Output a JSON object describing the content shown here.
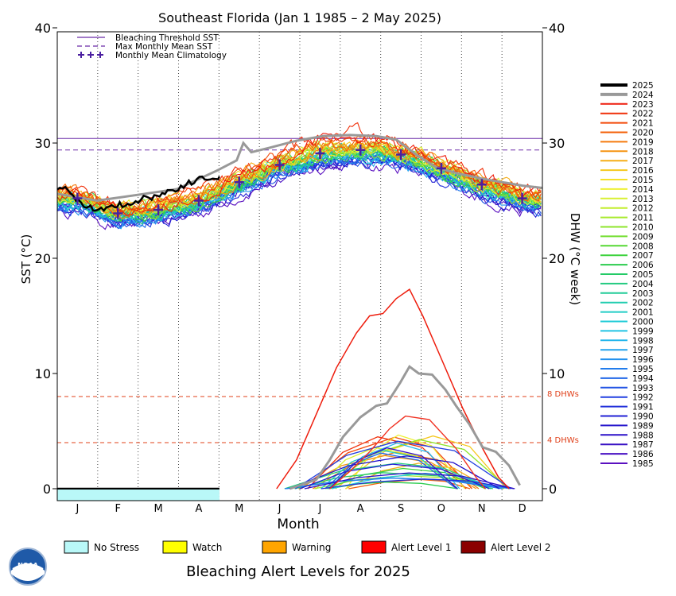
{
  "chart_data": {
    "type": "line",
    "title": "Southeast Florida      (Jan 1 1985 – 2 May 2025)",
    "xlabel": "Month",
    "ylabel_left": "SST (°C)",
    "ylabel_right": "DHW (°C week)",
    "months": [
      "J",
      "F",
      "M",
      "A",
      "M",
      "J",
      "J",
      "A",
      "S",
      "O",
      "N",
      "D"
    ],
    "ylim": [
      -1,
      40
    ],
    "yticks": [
      0,
      10,
      20,
      30,
      40
    ],
    "grid": "dotted vertical lines at month boundaries",
    "bleaching_threshold_sst": 30.4,
    "max_monthly_mean_sst": 29.4,
    "dhw_reference_lines": [
      {
        "value": 8,
        "label": "8 DHWs"
      },
      {
        "value": 4,
        "label": "4 DHWs"
      }
    ],
    "monthly_mean_climatology": [
      {
        "month": "J",
        "value": 25.2
      },
      {
        "month": "F",
        "value": 23.9
      },
      {
        "month": "M",
        "value": 24.2
      },
      {
        "month": "A",
        "value": 25.0
      },
      {
        "month": "M",
        "value": 26.6
      },
      {
        "month": "J",
        "value": 28.1
      },
      {
        "month": "J",
        "value": 29.1
      },
      {
        "month": "A",
        "value": 29.4
      },
      {
        "month": "S",
        "value": 29.0
      },
      {
        "month": "O",
        "value": 27.8
      },
      {
        "month": "N",
        "value": 26.4
      },
      {
        "month": "D",
        "value": 25.2
      }
    ],
    "legend_top": [
      {
        "label": "Bleaching Threshold SST",
        "style": "solid",
        "color": "#6a2aa8"
      },
      {
        "label": "Max Monthly Mean SST",
        "style": "dashed",
        "color": "#6a2aa8"
      },
      {
        "label": "Monthly Mean Climatology",
        "style": "plus",
        "color": "#4b1fa0"
      }
    ],
    "years": [
      "2025",
      "2024",
      "2023",
      "2022",
      "2021",
      "2020",
      "2019",
      "2018",
      "2017",
      "2016",
      "2015",
      "2014",
      "2013",
      "2012",
      "2011",
      "2010",
      "2009",
      "2008",
      "2007",
      "2006",
      "2005",
      "2004",
      "2003",
      "2002",
      "2001",
      "2000",
      "1999",
      "1998",
      "1997",
      "1996",
      "1995",
      "1994",
      "1993",
      "1992",
      "1991",
      "1990",
      "1989",
      "1988",
      "1987",
      "1986",
      "1985"
    ],
    "year_colors": [
      "#000000",
      "#999999",
      "#ee1c0c",
      "#f0300a",
      "#f24808",
      "#f46008",
      "#f57a0c",
      "#f59412",
      "#f5ae18",
      "#f5c820",
      "#f5e02a",
      "#eef032",
      "#d8f032",
      "#c2ee2e",
      "#a8ea2c",
      "#8ee42c",
      "#72de2e",
      "#56d834",
      "#3cd23c",
      "#2ccc4e",
      "#24ca66",
      "#22ca80",
      "#22cc98",
      "#22cdb0",
      "#22cec6",
      "#22ccd8",
      "#22c4e4",
      "#22b6ec",
      "#22a4ee",
      "#2290ee",
      "#227cec",
      "#2268e8",
      "#2254e4",
      "#2240e0",
      "#2230da",
      "#2220d4",
      "#2414cc",
      "#2c10c8",
      "#3810c4",
      "#4810c2",
      "#5a10c0"
    ],
    "series_2025_sst": [
      [
        0,
        26.2
      ],
      [
        8,
        25.9
      ],
      [
        12,
        25.2
      ],
      [
        18,
        24.8
      ],
      [
        25,
        24.4
      ],
      [
        35,
        24.3
      ],
      [
        45,
        24.6
      ],
      [
        55,
        24.8
      ],
      [
        65,
        25.2
      ],
      [
        75,
        25.4
      ],
      [
        85,
        25.8
      ],
      [
        95,
        26.3
      ],
      [
        105,
        26.8
      ],
      [
        115,
        27.0
      ],
      [
        122,
        27.1
      ]
    ],
    "series_2024_sst": [
      [
        0,
        25.6
      ],
      [
        30,
        25.0
      ],
      [
        60,
        25.5
      ],
      [
        90,
        26.0
      ],
      [
        120,
        27.6
      ],
      [
        135,
        28.5
      ],
      [
        140,
        30.0
      ],
      [
        146,
        29.2
      ],
      [
        160,
        29.6
      ],
      [
        180,
        30.2
      ],
      [
        200,
        30.6
      ],
      [
        220,
        30.7
      ],
      [
        240,
        30.6
      ],
      [
        255,
        30.3
      ],
      [
        270,
        29.0
      ],
      [
        285,
        27.9
      ],
      [
        300,
        27.4
      ],
      [
        320,
        26.9
      ],
      [
        335,
        26.6
      ],
      [
        350,
        26.3
      ],
      [
        365,
        26.1
      ]
    ],
    "series_2024_dhw": [
      [
        175,
        0
      ],
      [
        195,
        0.8
      ],
      [
        205,
        2.5
      ],
      [
        215,
        4.5
      ],
      [
        228,
        6.2
      ],
      [
        240,
        7.2
      ],
      [
        248,
        7.4
      ],
      [
        258,
        9.2
      ],
      [
        265,
        10.6
      ],
      [
        272,
        10.0
      ],
      [
        282,
        9.9
      ],
      [
        292,
        8.6
      ],
      [
        300,
        7.2
      ],
      [
        310,
        5.6
      ],
      [
        320,
        3.6
      ],
      [
        330,
        3.2
      ],
      [
        340,
        2.0
      ],
      [
        348,
        0.3
      ]
    ],
    "series_2023_dhw": [
      [
        165,
        0
      ],
      [
        180,
        2.5
      ],
      [
        195,
        6.5
      ],
      [
        210,
        10.5
      ],
      [
        225,
        13.5
      ],
      [
        235,
        15.0
      ],
      [
        245,
        15.2
      ],
      [
        255,
        16.5
      ],
      [
        265,
        17.3
      ],
      [
        275,
        15.0
      ],
      [
        290,
        11.0
      ],
      [
        305,
        7.0
      ],
      [
        320,
        3.5
      ],
      [
        332,
        1.0
      ],
      [
        340,
        0
      ]
    ],
    "series_2019_dhw": [
      [
        205,
        0
      ],
      [
        220,
        1.5
      ],
      [
        235,
        3.2
      ],
      [
        250,
        5.2
      ],
      [
        262,
        6.3
      ],
      [
        280,
        6.0
      ],
      [
        300,
        3.5
      ],
      [
        315,
        1.0
      ],
      [
        322,
        0
      ]
    ],
    "alert_levels_2025": [
      {
        "label": "No Stress",
        "color": "#b9f8f8"
      },
      {
        "label": "Watch",
        "color": "#ffff00"
      },
      {
        "label": "Warning",
        "color": "#ffa500"
      },
      {
        "label": "Alert Level 1",
        "color": "#ff0000"
      },
      {
        "label": "Alert Level 2",
        "color": "#8b0000"
      }
    ],
    "alert_bar_2025": {
      "status": "No Stress",
      "days_covered": 122
    }
  },
  "footer": {
    "title": "Bleaching Alert Levels for 2025",
    "logo_text": "NOAA"
  },
  "ref_labels": {
    "dhw8": "8 DHWs",
    "dhw4": "4 DHWs"
  }
}
